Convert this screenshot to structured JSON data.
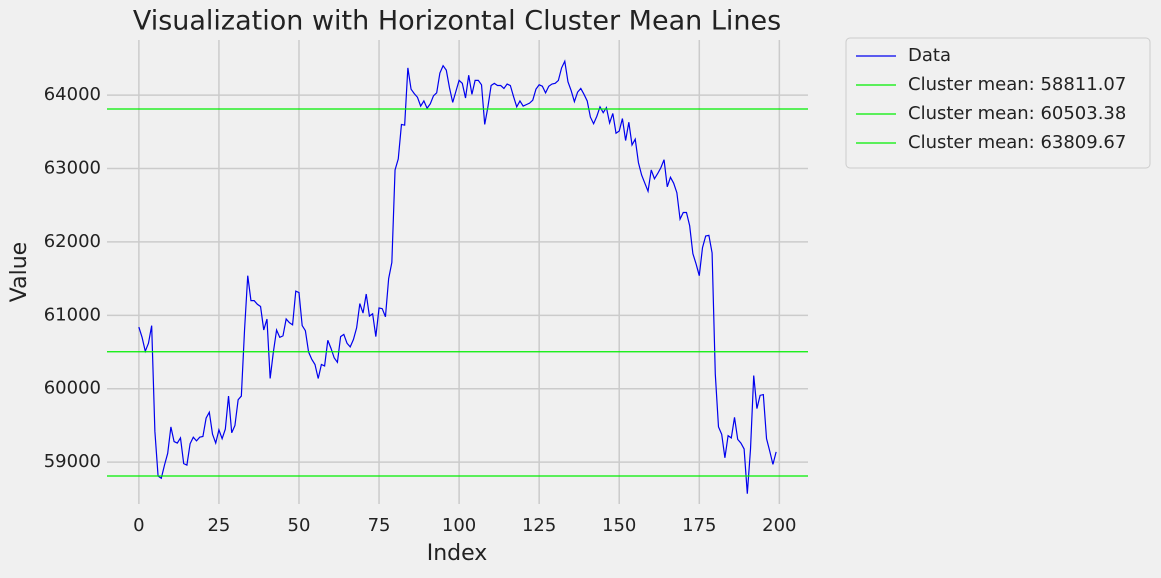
{
  "chart_data": {
    "type": "line",
    "title": "Visualization with Horizontal Cluster Mean Lines",
    "xlabel": "Index",
    "ylabel": "Value",
    "x": [
      0,
      1,
      2,
      3,
      4,
      5,
      6,
      7,
      8,
      9,
      10,
      11,
      12,
      13,
      14,
      15,
      16,
      17,
      18,
      19,
      20,
      21,
      22,
      23,
      24,
      25,
      26,
      27,
      28,
      29,
      30,
      31,
      32,
      33,
      34,
      35,
      36,
      37,
      38,
      39,
      40,
      41,
      42,
      43,
      44,
      45,
      46,
      47,
      48,
      49,
      50,
      51,
      52,
      53,
      54,
      55,
      56,
      57,
      58,
      59,
      60,
      61,
      62,
      63,
      64,
      65,
      66,
      67,
      68,
      69,
      70,
      71,
      72,
      73,
      74,
      75,
      76,
      77,
      78,
      79,
      80,
      81,
      82,
      83,
      84,
      85,
      86,
      87,
      88,
      89,
      90,
      91,
      92,
      93,
      94,
      95,
      96,
      97,
      98,
      99,
      100,
      101,
      102,
      103,
      104,
      105,
      106,
      107,
      108,
      109,
      110,
      111,
      112,
      113,
      114,
      115,
      116,
      117,
      118,
      119,
      120,
      121,
      122,
      123,
      124,
      125,
      126,
      127,
      128,
      129,
      130,
      131,
      132,
      133,
      134,
      135,
      136,
      137,
      138,
      139,
      140,
      141,
      142,
      143,
      144,
      145,
      146,
      147,
      148,
      149,
      150,
      151,
      152,
      153,
      154,
      155,
      156,
      157,
      158,
      159,
      160,
      161,
      162,
      163,
      164,
      165,
      166,
      167,
      168,
      169,
      170,
      171,
      172,
      173,
      174,
      175,
      176,
      177,
      178,
      179,
      180,
      181,
      182,
      183,
      184,
      185,
      186,
      187,
      188,
      189,
      190,
      191,
      192,
      193,
      194,
      195,
      196,
      197,
      198,
      199
    ],
    "series": [
      {
        "name": "Data",
        "color": "#0000ee",
        "values": [
          60840,
          60700,
          60510,
          60620,
          60860,
          59420,
          58810,
          58780,
          58960,
          59120,
          59480,
          59280,
          59260,
          59330,
          58980,
          58960,
          59250,
          59340,
          59290,
          59340,
          59350,
          59600,
          59680,
          59380,
          59260,
          59440,
          59320,
          59450,
          59900,
          59400,
          59500,
          59850,
          59900,
          60800,
          61540,
          61200,
          61200,
          61150,
          61120,
          60800,
          60950,
          60140,
          60500,
          60800,
          60700,
          60720,
          60950,
          60900,
          60870,
          61330,
          61310,
          60860,
          60790,
          60500,
          60400,
          60330,
          60140,
          60330,
          60310,
          60660,
          60550,
          60420,
          60360,
          60710,
          60740,
          60620,
          60570,
          60670,
          60830,
          61160,
          61030,
          61290,
          60990,
          61020,
          60710,
          61100,
          61090,
          60980,
          61500,
          61720,
          62980,
          63130,
          63600,
          63590,
          64370,
          64080,
          64020,
          63970,
          63850,
          63920,
          63820,
          63880,
          63990,
          64030,
          64300,
          64400,
          64340,
          64100,
          63900,
          64050,
          64200,
          64160,
          63960,
          64270,
          64010,
          64200,
          64200,
          64140,
          63600,
          63840,
          64130,
          64160,
          64130,
          64130,
          64090,
          64150,
          64130,
          63980,
          63840,
          63920,
          63850,
          63870,
          63890,
          63930,
          64080,
          64140,
          64120,
          64030,
          64120,
          64150,
          64160,
          64200,
          64370,
          64460,
          64180,
          64060,
          63910,
          64040,
          64090,
          64010,
          63920,
          63700,
          63610,
          63710,
          63840,
          63760,
          63830,
          63620,
          63750,
          63480,
          63510,
          63680,
          63380,
          63630,
          63320,
          63400,
          63080,
          62910,
          62800,
          62690,
          62980,
          62860,
          62930,
          63010,
          63120,
          62750,
          62880,
          62800,
          62670,
          62310,
          62400,
          62400,
          62220,
          61840,
          61700,
          61540,
          61920,
          62080,
          62090,
          61850,
          60200,
          59480,
          59380,
          59060,
          59360,
          59330,
          59610,
          59310,
          59260,
          59180,
          58570,
          59180,
          60180,
          59730,
          59910,
          59920,
          59320,
          59150,
          58970,
          59140
        ]
      }
    ],
    "hlines": [
      {
        "name": "Cluster mean: 58811.07",
        "value": 58811.07,
        "color": "#00ee00"
      },
      {
        "name": "Cluster mean: 60503.38",
        "value": 60503.38,
        "color": "#00ee00"
      },
      {
        "name": "Cluster mean: 63809.67",
        "value": 63809.67,
        "color": "#00ee00"
      }
    ],
    "xlim": [
      -9.95,
      208.95
    ],
    "xticks": [
      0,
      25,
      50,
      75,
      100,
      125,
      150,
      175,
      200
    ],
    "ylim": [
      58430,
      64750
    ],
    "yticks": [
      59000,
      60000,
      61000,
      62000,
      63000,
      64000
    ],
    "grid": true
  }
}
